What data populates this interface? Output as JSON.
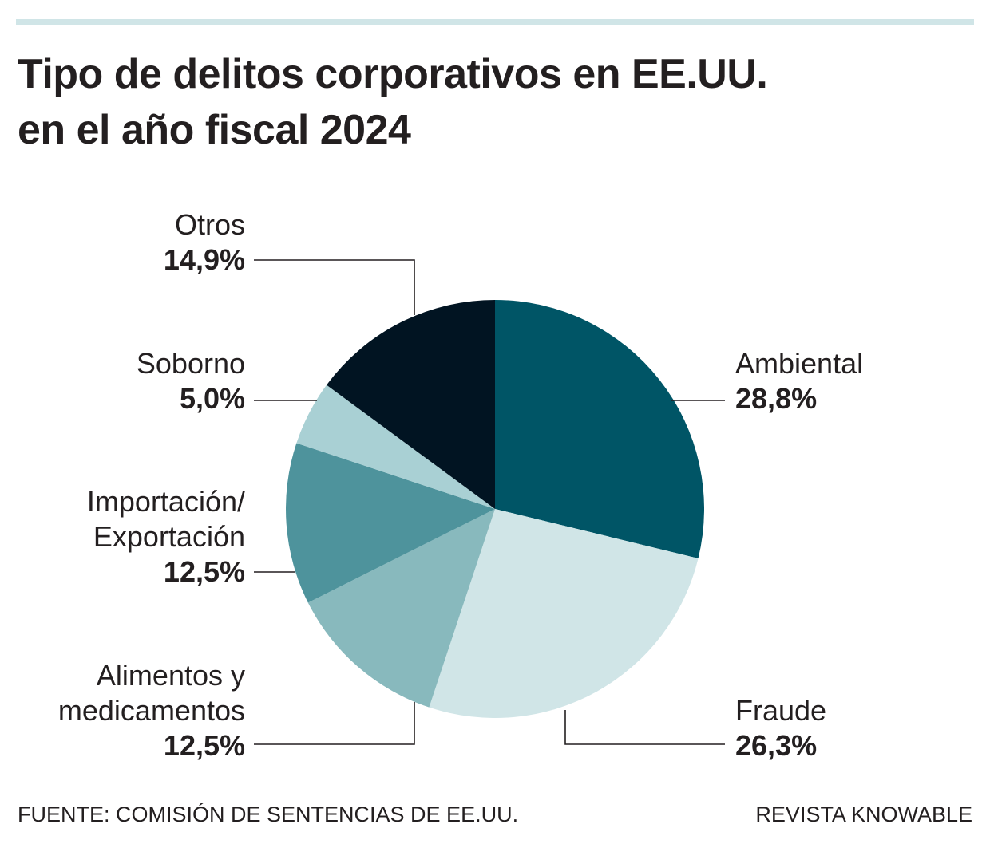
{
  "chart_data": {
    "type": "pie",
    "title": "Tipo de delitos corporativos en EE.UU.\nen el año fiscal 2024",
    "categories": [
      "Ambiental",
      "Fraude",
      "Alimentos y\nmedicamentos",
      "Importación/\nExportación",
      "Soborno",
      "Otros"
    ],
    "values": [
      28.8,
      26.3,
      12.5,
      12.5,
      5.0,
      14.9
    ],
    "value_labels": [
      "28,8%",
      "26,3%",
      "12,5%",
      "12,5%",
      "5,0%",
      "14,9%"
    ],
    "colors": [
      "#005566",
      "#d0e5e7",
      "#88b9bd",
      "#4e939c",
      "#a9d0d4",
      "#011422"
    ],
    "source": "FUENTE: COMISIÓN DE SENTENCIAS DE EE.UU.",
    "credit": "REVISTA KNOWABLE"
  }
}
